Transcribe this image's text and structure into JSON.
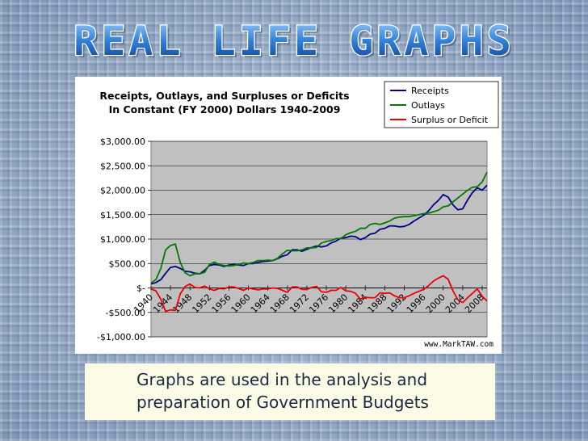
{
  "slide": {
    "title": "REAL LIFE GRAPHS",
    "caption_lines": [
      "Graphs are used in the analysis and",
      "preparation of Government Budgets"
    ]
  },
  "colors": {
    "receipts": "#00008b",
    "outlays": "#007a00",
    "surplus": "#ee0000",
    "plot_bg": "#c0c0c0",
    "title_fill": "#2f7fd9"
  },
  "chart_data": {
    "type": "line",
    "title_lines": [
      "Receipts, Outlays, and Surpluses or Deficits",
      "In Constant (FY 2000) Dollars 1940-2009"
    ],
    "watermark": "www.MarkTAW.com",
    "xlim": [
      1940,
      2009
    ],
    "ylim": [
      -1000,
      3000
    ],
    "grid": true,
    "legend_position": "top-right",
    "y_ticks": [
      {
        "value": 3000,
        "label": "$3,000.00"
      },
      {
        "value": 2500,
        "label": "$2,500.00"
      },
      {
        "value": 2000,
        "label": "$2,000.00"
      },
      {
        "value": 1500,
        "label": "$1,500.00"
      },
      {
        "value": 1000,
        "label": "$1,000.00"
      },
      {
        "value": 500,
        "label": "$500.00"
      },
      {
        "value": 0,
        "label": "$-"
      },
      {
        "value": -500,
        "label": "-$500.00"
      },
      {
        "value": -1000,
        "label": "-$1,000.00"
      }
    ],
    "x_ticks": [
      {
        "value": 1940,
        "label": "1940"
      },
      {
        "value": 1944,
        "label": "1944"
      },
      {
        "value": 1948,
        "label": "1948"
      },
      {
        "value": 1952,
        "label": "1952"
      },
      {
        "value": 1956,
        "label": "1956"
      },
      {
        "value": 1960,
        "label": "1960"
      },
      {
        "value": 1964,
        "label": "1964"
      },
      {
        "value": 1968,
        "label": "1968"
      },
      {
        "value": 1972,
        "label": "1972"
      },
      {
        "value": 1976,
        "label": "1976"
      },
      {
        "value": 1980,
        "label": "1980"
      },
      {
        "value": 1984,
        "label": "1984"
      },
      {
        "value": 1988,
        "label": "1988"
      },
      {
        "value": 1992,
        "label": "1992"
      },
      {
        "value": 1996,
        "label": "1996"
      },
      {
        "value": 2000,
        "label": "2000"
      },
      {
        "value": 2004,
        "label": "2004"
      },
      {
        "value": 2008,
        "label": "2008"
      }
    ],
    "series": [
      {
        "name": "Receipts",
        "color": "#00008b",
        "points": [
          [
            1940,
            80
          ],
          [
            1941,
            110
          ],
          [
            1942,
            170
          ],
          [
            1943,
            300
          ],
          [
            1944,
            420
          ],
          [
            1945,
            440
          ],
          [
            1946,
            400
          ],
          [
            1947,
            340
          ],
          [
            1948,
            330
          ],
          [
            1949,
            300
          ],
          [
            1950,
            290
          ],
          [
            1951,
            360
          ],
          [
            1952,
            460
          ],
          [
            1953,
            480
          ],
          [
            1954,
            470
          ],
          [
            1955,
            440
          ],
          [
            1956,
            470
          ],
          [
            1957,
            480
          ],
          [
            1958,
            470
          ],
          [
            1959,
            460
          ],
          [
            1960,
            500
          ],
          [
            1961,
            500
          ],
          [
            1962,
            520
          ],
          [
            1963,
            540
          ],
          [
            1964,
            550
          ],
          [
            1965,
            560
          ],
          [
            1966,
            600
          ],
          [
            1967,
            650
          ],
          [
            1968,
            680
          ],
          [
            1969,
            780
          ],
          [
            1970,
            780
          ],
          [
            1971,
            750
          ],
          [
            1972,
            790
          ],
          [
            1973,
            830
          ],
          [
            1974,
            860
          ],
          [
            1975,
            840
          ],
          [
            1976,
            860
          ],
          [
            1977,
            920
          ],
          [
            1978,
            960
          ],
          [
            1979,
            1020
          ],
          [
            1980,
            1030
          ],
          [
            1981,
            1060
          ],
          [
            1982,
            1050
          ],
          [
            1983,
            990
          ],
          [
            1984,
            1030
          ],
          [
            1985,
            1100
          ],
          [
            1986,
            1120
          ],
          [
            1987,
            1200
          ],
          [
            1988,
            1220
          ],
          [
            1989,
            1270
          ],
          [
            1990,
            1270
          ],
          [
            1991,
            1250
          ],
          [
            1992,
            1260
          ],
          [
            1993,
            1300
          ],
          [
            1994,
            1370
          ],
          [
            1995,
            1430
          ],
          [
            1996,
            1490
          ],
          [
            1997,
            1580
          ],
          [
            1998,
            1700
          ],
          [
            1999,
            1790
          ],
          [
            2000,
            1910
          ],
          [
            2001,
            1860
          ],
          [
            2002,
            1700
          ],
          [
            2003,
            1600
          ],
          [
            2004,
            1620
          ],
          [
            2005,
            1800
          ],
          [
            2006,
            1950
          ],
          [
            2007,
            2050
          ],
          [
            2008,
            2000
          ],
          [
            2009,
            2100
          ]
        ]
      },
      {
        "name": "Outlays",
        "color": "#007a00",
        "points": [
          [
            1940,
            100
          ],
          [
            1941,
            170
          ],
          [
            1942,
            400
          ],
          [
            1943,
            780
          ],
          [
            1944,
            870
          ],
          [
            1945,
            900
          ],
          [
            1946,
            520
          ],
          [
            1947,
            310
          ],
          [
            1948,
            250
          ],
          [
            1949,
            290
          ],
          [
            1950,
            290
          ],
          [
            1951,
            320
          ],
          [
            1952,
            480
          ],
          [
            1953,
            530
          ],
          [
            1954,
            480
          ],
          [
            1955,
            460
          ],
          [
            1956,
            450
          ],
          [
            1957,
            460
          ],
          [
            1958,
            480
          ],
          [
            1959,
            510
          ],
          [
            1960,
            500
          ],
          [
            1961,
            520
          ],
          [
            1962,
            560
          ],
          [
            1963,
            560
          ],
          [
            1964,
            570
          ],
          [
            1965,
            560
          ],
          [
            1966,
            610
          ],
          [
            1967,
            700
          ],
          [
            1968,
            770
          ],
          [
            1969,
            760
          ],
          [
            1970,
            760
          ],
          [
            1971,
            780
          ],
          [
            1972,
            820
          ],
          [
            1973,
            820
          ],
          [
            1974,
            830
          ],
          [
            1975,
            920
          ],
          [
            1976,
            950
          ],
          [
            1977,
            970
          ],
          [
            1978,
            1010
          ],
          [
            1979,
            1010
          ],
          [
            1980,
            1090
          ],
          [
            1981,
            1130
          ],
          [
            1982,
            1160
          ],
          [
            1983,
            1220
          ],
          [
            1984,
            1220
          ],
          [
            1985,
            1300
          ],
          [
            1986,
            1320
          ],
          [
            1987,
            1300
          ],
          [
            1988,
            1330
          ],
          [
            1989,
            1370
          ],
          [
            1990,
            1430
          ],
          [
            1991,
            1450
          ],
          [
            1992,
            1460
          ],
          [
            1993,
            1460
          ],
          [
            1994,
            1480
          ],
          [
            1995,
            1500
          ],
          [
            1996,
            1520
          ],
          [
            1997,
            1530
          ],
          [
            1998,
            1560
          ],
          [
            1999,
            1590
          ],
          [
            2000,
            1660
          ],
          [
            2001,
            1680
          ],
          [
            2002,
            1760
          ],
          [
            2003,
            1840
          ],
          [
            2004,
            1920
          ],
          [
            2005,
            2000
          ],
          [
            2006,
            2060
          ],
          [
            2007,
            2070
          ],
          [
            2008,
            2170
          ],
          [
            2009,
            2370
          ]
        ]
      },
      {
        "name": "Surplus or Deficit",
        "color": "#ee0000",
        "points": [
          [
            1940,
            -20
          ],
          [
            1941,
            -60
          ],
          [
            1942,
            -230
          ],
          [
            1943,
            -480
          ],
          [
            1944,
            -450
          ],
          [
            1945,
            -460
          ],
          [
            1946,
            -120
          ],
          [
            1947,
            30
          ],
          [
            1948,
            80
          ],
          [
            1949,
            10
          ],
          [
            1950,
            0
          ],
          [
            1951,
            40
          ],
          [
            1952,
            -20
          ],
          [
            1953,
            -50
          ],
          [
            1954,
            -10
          ],
          [
            1955,
            -20
          ],
          [
            1956,
            20
          ],
          [
            1957,
            20
          ],
          [
            1958,
            -10
          ],
          [
            1959,
            -50
          ],
          [
            1960,
            0
          ],
          [
            1961,
            -20
          ],
          [
            1962,
            -40
          ],
          [
            1963,
            -20
          ],
          [
            1964,
            -20
          ],
          [
            1965,
            0
          ],
          [
            1966,
            -10
          ],
          [
            1967,
            -50
          ],
          [
            1968,
            -90
          ],
          [
            1969,
            20
          ],
          [
            1970,
            20
          ],
          [
            1971,
            -30
          ],
          [
            1972,
            -30
          ],
          [
            1973,
            10
          ],
          [
            1974,
            30
          ],
          [
            1975,
            -80
          ],
          [
            1976,
            -90
          ],
          [
            1977,
            -50
          ],
          [
            1978,
            -50
          ],
          [
            1979,
            10
          ],
          [
            1980,
            -60
          ],
          [
            1981,
            -70
          ],
          [
            1982,
            -110
          ],
          [
            1983,
            -230
          ],
          [
            1984,
            -190
          ],
          [
            1985,
            -200
          ],
          [
            1986,
            -200
          ],
          [
            1987,
            -100
          ],
          [
            1988,
            -110
          ],
          [
            1989,
            -100
          ],
          [
            1990,
            -160
          ],
          [
            1991,
            -200
          ],
          [
            1992,
            -200
          ],
          [
            1993,
            -160
          ],
          [
            1994,
            -110
          ],
          [
            1995,
            -70
          ],
          [
            1996,
            -30
          ],
          [
            1997,
            50
          ],
          [
            1998,
            140
          ],
          [
            1999,
            200
          ],
          [
            2000,
            250
          ],
          [
            2001,
            180
          ],
          [
            2002,
            -60
          ],
          [
            2003,
            -240
          ],
          [
            2004,
            -300
          ],
          [
            2005,
            -200
          ],
          [
            2006,
            -110
          ],
          [
            2007,
            -20
          ],
          [
            2008,
            -170
          ],
          [
            2009,
            -270
          ]
        ]
      }
    ]
  }
}
